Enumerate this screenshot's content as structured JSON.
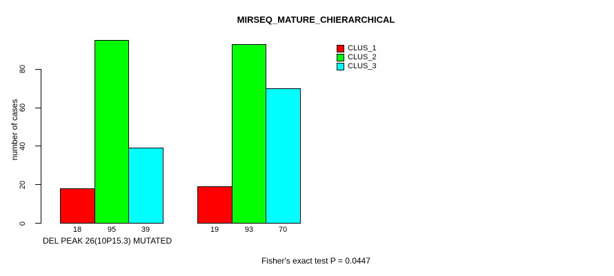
{
  "chart_data": {
    "type": "bar",
    "title": "MIRSEQ_MATURE_CHIERARCHICAL",
    "ylabel": "number of cases",
    "xlabel": "DEL PEAK 26(10P15.3) MUTATED",
    "annotation": "Fisher's exact test P = 0.0447",
    "grid": false,
    "legend_position": "top-right",
    "background_color": "#ffffff",
    "axis_color": "#000000",
    "ylim": [
      0,
      100
    ],
    "yticks": [
      0,
      20,
      40,
      60,
      80
    ],
    "groups": 2,
    "series": [
      {
        "name": "CLUS_1",
        "color": "#ff0000",
        "values": [
          18,
          19
        ]
      },
      {
        "name": "CLUS_2",
        "color": "#00ff00",
        "values": [
          95,
          93
        ]
      },
      {
        "name": "CLUS_3",
        "color": "#00ffff",
        "values": [
          39,
          70
        ]
      }
    ],
    "bar_value_labels": [
      [
        18,
        95,
        39
      ],
      [
        19,
        93,
        70
      ]
    ]
  }
}
